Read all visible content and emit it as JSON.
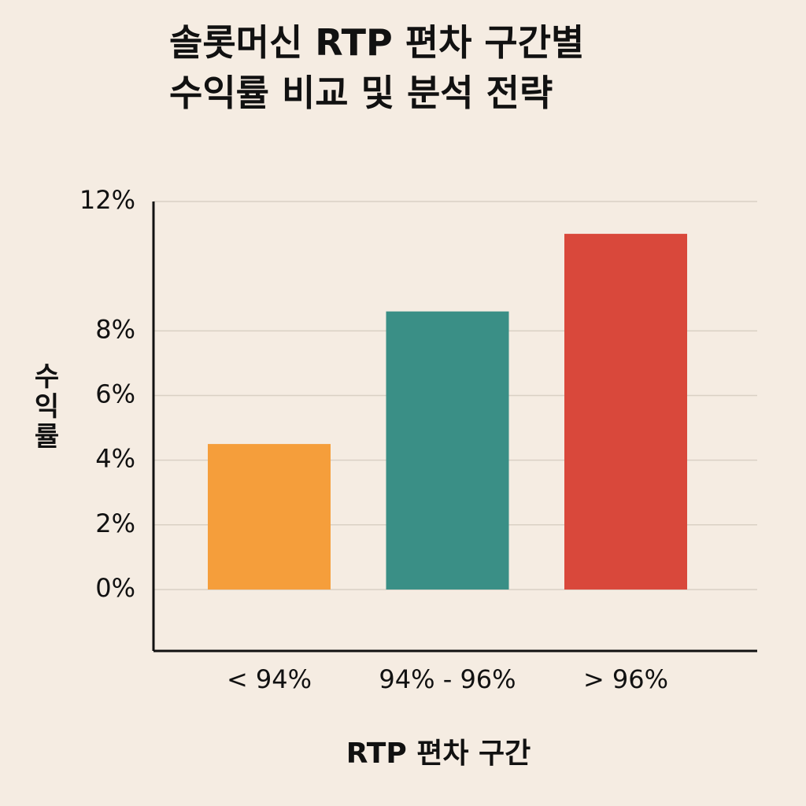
{
  "chart_data": {
    "type": "bar",
    "title": "솔롯머신 RTP 편차 구간별",
    "subtitle": "수익률 비교 및 분석 전략",
    "y_label": "수익률",
    "x_label": "RTP 편차 구간",
    "categories": [
      "< 94%",
      "94% - 96%",
      "> 96%"
    ],
    "values": [
      4.5,
      8.6,
      11
    ],
    "colors": [
      "#f59e3b",
      "#3a8f86",
      "#d9483b"
    ],
    "ylim": [
      -1.9,
      12
    ],
    "yticks": [
      {
        "value": 0,
        "label": "0%"
      },
      {
        "value": 2,
        "label": "2%"
      },
      {
        "value": 4,
        "label": "4%"
      },
      {
        "value": 6,
        "label": "6%"
      },
      {
        "value": 8,
        "label": "8%"
      },
      {
        "value": 12,
        "label": "12%"
      }
    ],
    "grid": true
  }
}
